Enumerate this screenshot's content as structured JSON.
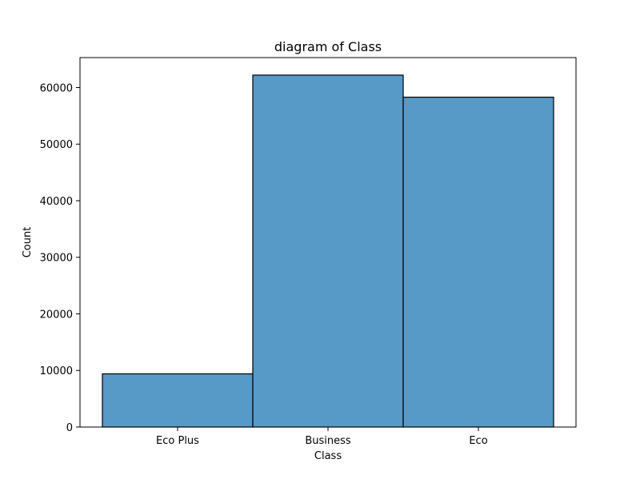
{
  "chart_data": {
    "type": "bar",
    "title": "diagram of Class",
    "xlabel": "Class",
    "ylabel": "Count",
    "categories": [
      "Eco Plus",
      "Business",
      "Eco"
    ],
    "values": [
      9400,
      62200,
      58300
    ],
    "ylim": [
      0,
      65300
    ],
    "yticks": [
      0,
      10000,
      20000,
      30000,
      40000,
      50000,
      60000
    ],
    "ytick_labels": [
      "0",
      "10000",
      "20000",
      "30000",
      "40000",
      "50000",
      "60000"
    ],
    "grid": false,
    "legend": "none",
    "colors": {
      "bar_fill": "#5799c7",
      "bar_edge": "#000000",
      "axis": "#000000",
      "background": "#ffffff"
    }
  }
}
